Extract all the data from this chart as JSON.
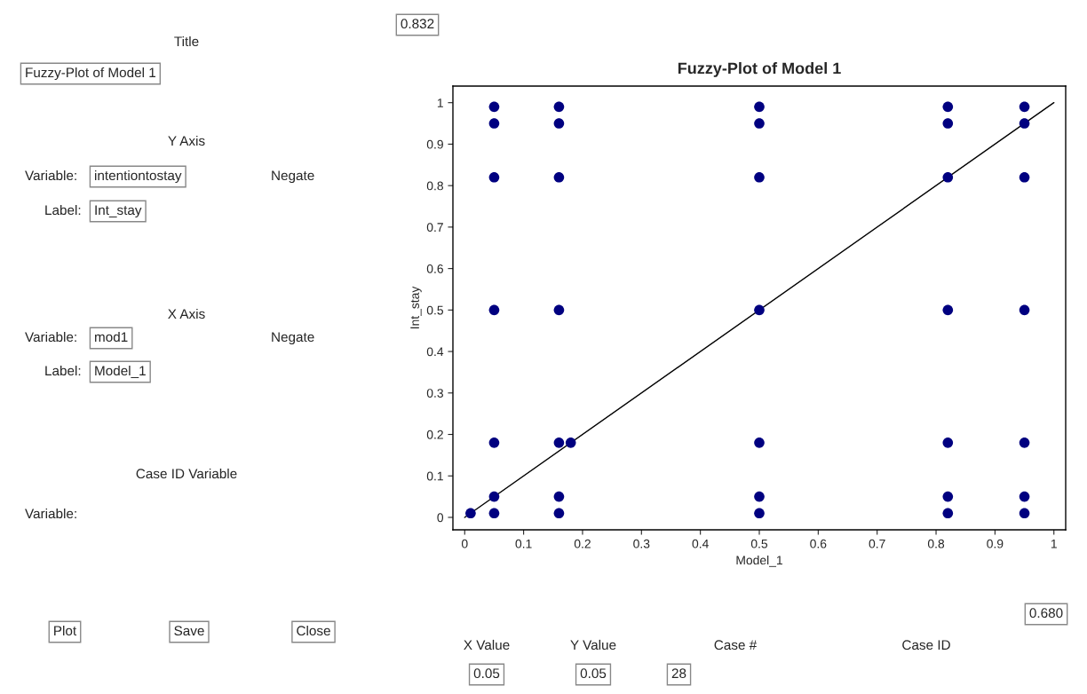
{
  "chart_data": {
    "type": "scatter",
    "title": "Fuzzy-Plot of Model 1",
    "xlabel": "Model_1",
    "ylabel": "Int_stay",
    "xlim": [
      -0.02,
      1.02
    ],
    "ylim": [
      -0.03,
      1.04
    ],
    "xticks": [
      0,
      0.1,
      0.2,
      0.3,
      0.4,
      0.5,
      0.6,
      0.7,
      0.8,
      0.9,
      1
    ],
    "yticks": [
      0,
      0.1,
      0.2,
      0.3,
      0.4,
      0.5,
      0.6,
      0.7,
      0.8,
      0.9,
      1
    ],
    "grid": false,
    "series": [
      {
        "marker": "circle",
        "color": "#000080",
        "x": [
          0.01,
          0.05,
          0.05,
          0.05,
          0.05,
          0.05,
          0.05,
          0.05,
          0.16,
          0.16,
          0.16,
          0.16,
          0.16,
          0.16,
          0.16,
          0.18,
          0.5,
          0.5,
          0.5,
          0.5,
          0.5,
          0.5,
          0.5,
          0.82,
          0.82,
          0.82,
          0.82,
          0.82,
          0.82,
          0.82,
          0.95,
          0.95,
          0.95,
          0.95,
          0.95,
          0.95,
          0.95
        ],
        "values": [
          0.01,
          0.99,
          0.95,
          0.82,
          0.5,
          0.18,
          0.05,
          0.01,
          0.99,
          0.95,
          0.82,
          0.5,
          0.18,
          0.05,
          0.01,
          0.18,
          0.99,
          0.95,
          0.82,
          0.5,
          0.18,
          0.05,
          0.01,
          0.99,
          0.95,
          0.82,
          0.5,
          0.18,
          0.05,
          0.01,
          0.99,
          0.95,
          0.82,
          0.5,
          0.18,
          0.05,
          0.01
        ]
      },
      {
        "type": "line",
        "color": "#000000",
        "x": [
          0,
          1
        ],
        "values": [
          0,
          1
        ]
      }
    ],
    "annotations": [
      "0.832",
      "0.680",
      "Title",
      "Fuzzy-Plot of Model 1",
      "Y Axis",
      "Variable:",
      "intentiontostay",
      "Negate",
      "Label:",
      "Int_stay",
      "X Axis",
      "Variable:",
      "mod1",
      "Negate",
      "Label:",
      "Model_1",
      "Case ID Variable",
      "Variable:",
      "Plot",
      "Save",
      "Close",
      "X Value",
      "Y Value",
      "Case #",
      "Case ID",
      "0.05",
      "0.05",
      "28"
    ]
  }
}
